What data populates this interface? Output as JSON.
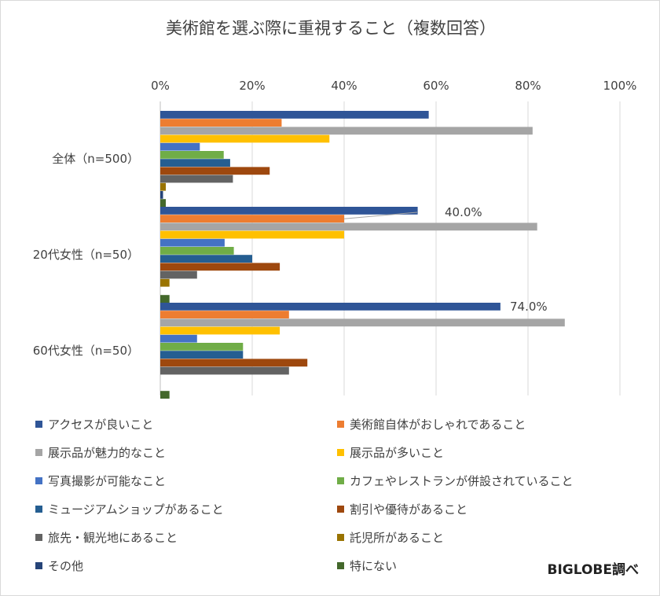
{
  "chart_data": {
    "type": "bar",
    "orientation": "horizontal",
    "title": "美術館を選ぶ際に重視すること（複数回答）",
    "xlabel": "",
    "ylabel": "",
    "xlim": [
      0,
      100
    ],
    "x_ticks": [
      "0%",
      "20%",
      "40%",
      "60%",
      "80%",
      "100%"
    ],
    "grid": true,
    "legend_position": "bottom",
    "categories": [
      "全体（n=500）",
      "20代女性（n=50）",
      "60代女性（n=50）"
    ],
    "series": [
      {
        "name": "アクセスが良いこと",
        "color": "#2F5597",
        "values": [
          58.4,
          56.0,
          74.0
        ]
      },
      {
        "name": "美術館自体がおしゃれであること",
        "color": "#ED7D31",
        "values": [
          26.4,
          40.0,
          28.0
        ]
      },
      {
        "name": "展示品が魅力的なこと",
        "color": "#A5A5A5",
        "values": [
          81.0,
          82.0,
          88.0
        ]
      },
      {
        "name": "展示品が多いこと",
        "color": "#FFC000",
        "values": [
          36.8,
          40.0,
          26.0
        ]
      },
      {
        "name": "写真撮影が可能なこと",
        "color": "#4472C4",
        "values": [
          8.6,
          14.0,
          8.0
        ]
      },
      {
        "name": "カフェやレストランが併設されていること",
        "color": "#70AD47",
        "values": [
          13.8,
          16.0,
          18.0
        ]
      },
      {
        "name": "ミュージアムショップがあること",
        "color": "#255E91",
        "values": [
          15.2,
          20.0,
          18.0
        ]
      },
      {
        "name": "割引や優待があること",
        "color": "#9E480E",
        "values": [
          23.8,
          26.0,
          32.0
        ]
      },
      {
        "name": "旅先・観光地にあること",
        "color": "#636363",
        "values": [
          15.8,
          8.0,
          28.0
        ]
      },
      {
        "name": "託児所があること",
        "color": "#997300",
        "values": [
          1.2,
          2.0,
          0.0
        ]
      },
      {
        "name": "その他",
        "color": "#264478",
        "values": [
          0.6,
          0.0,
          0.0
        ]
      },
      {
        "name": "特にない",
        "color": "#43682B",
        "values": [
          1.2,
          2.0,
          2.0
        ]
      }
    ],
    "annotations": [
      {
        "text": "40.0%",
        "category_index": 1,
        "series_index": 1
      },
      {
        "text": "74.0%",
        "category_index": 2,
        "series_index": 0
      }
    ]
  },
  "source_label": "BIGLOBE調べ"
}
